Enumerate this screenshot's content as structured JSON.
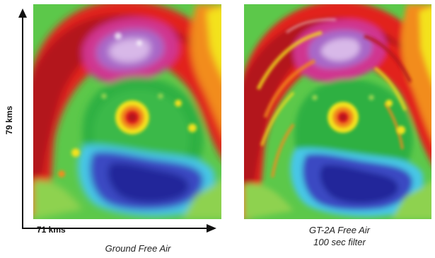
{
  "axes": {
    "y_label": "79 kms",
    "x_label": "71 kms"
  },
  "panels": [
    {
      "caption": "Ground Free Air",
      "caption_line2": ""
    },
    {
      "caption": "GT-2A Free Air",
      "caption_line2": "100 sec filter"
    }
  ],
  "colors": {
    "red": "#e2231a",
    "dark_red": "#b3141b",
    "magenta": "#d0348f",
    "violet": "#a868c8",
    "lavender": "#d8b8e8",
    "orange": "#f28c1e",
    "yellow": "#f3e21f",
    "green": "#2fb043",
    "light_green": "#8ed24f",
    "cyan": "#47c7e6",
    "blue": "#3a48c2",
    "navy": "#23289a"
  }
}
